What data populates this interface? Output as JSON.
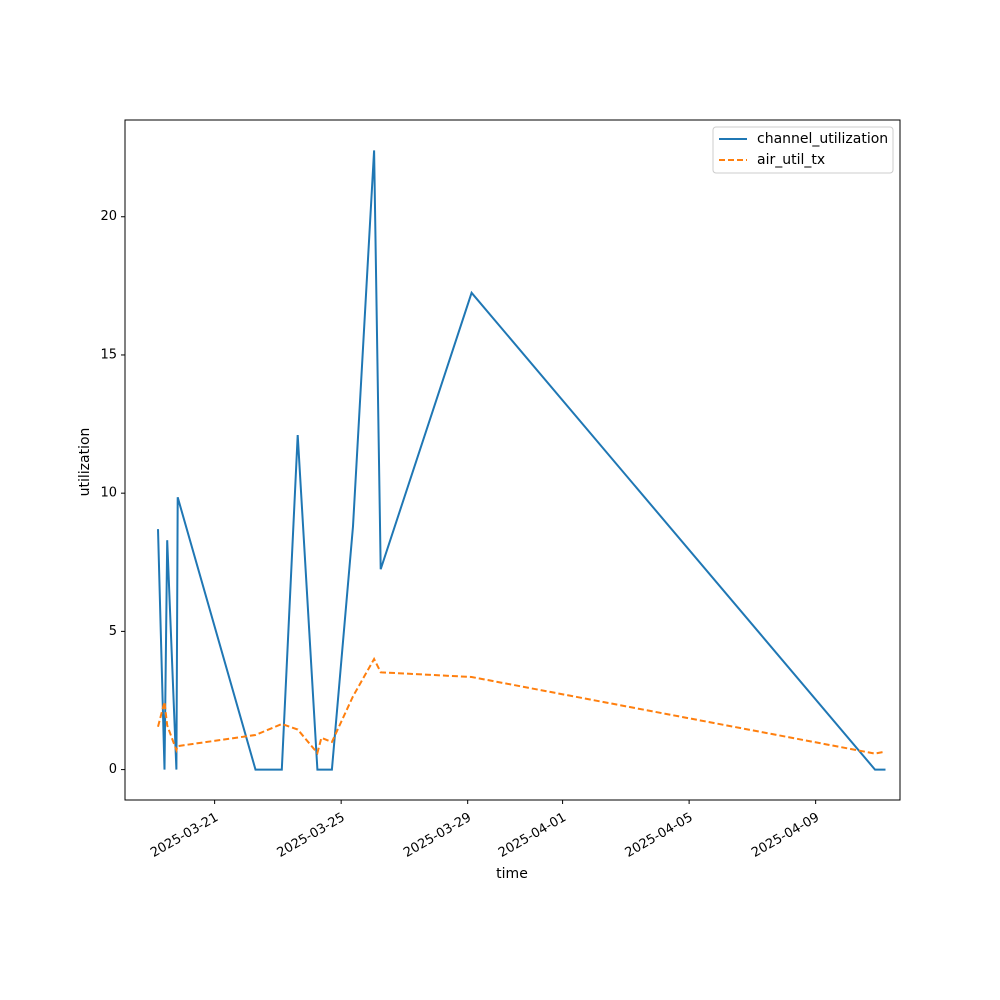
{
  "chart_data": {
    "type": "line",
    "xlabel": "time",
    "ylabel": "utilization",
    "x_scale": "date",
    "xlim": [
      "2025-03-18T04:00",
      "2025-04-11T16:00"
    ],
    "ylim": [
      -1.1,
      23.5
    ],
    "x_ticks": [
      "2025-03-21",
      "2025-03-25",
      "2025-03-29",
      "2025-04-01",
      "2025-04-05",
      "2025-04-09"
    ],
    "y_ticks": [
      0,
      5,
      10,
      15,
      20
    ],
    "grid": false,
    "legend_position": "top-right",
    "series": [
      {
        "name": "channel_utilization",
        "color": "#1f77b4",
        "dash": "solid",
        "points": [
          [
            "2025-03-19T05:00",
            8.7
          ],
          [
            "2025-03-19T10:00",
            0.0
          ],
          [
            "2025-03-19T12:00",
            8.3
          ],
          [
            "2025-03-19T19:00",
            0.0
          ],
          [
            "2025-03-19T20:00",
            9.85
          ],
          [
            "2025-03-22T07:00",
            0.0
          ],
          [
            "2025-03-23T03:00",
            0.0
          ],
          [
            "2025-03-23T15:00",
            12.1
          ],
          [
            "2025-03-24T06:00",
            0.0
          ],
          [
            "2025-03-24T17:00",
            0.0
          ],
          [
            "2025-03-25T09:00",
            8.8
          ],
          [
            "2025-03-26T01:00",
            22.4
          ],
          [
            "2025-03-26T06:00",
            7.25
          ],
          [
            "2025-03-29T03:00",
            17.25
          ],
          [
            "2025-04-10T21:00",
            0.0
          ],
          [
            "2025-04-11T05:00",
            0.0
          ]
        ]
      },
      {
        "name": "air_util_tx",
        "color": "#ff7f0e",
        "dash": "dashed",
        "points": [
          [
            "2025-03-19T05:00",
            1.55
          ],
          [
            "2025-03-19T10:00",
            2.45
          ],
          [
            "2025-03-19T12:00",
            1.6
          ],
          [
            "2025-03-19T19:00",
            0.7
          ],
          [
            "2025-03-19T20:00",
            0.85
          ],
          [
            "2025-03-22T07:00",
            1.25
          ],
          [
            "2025-03-23T03:00",
            1.65
          ],
          [
            "2025-03-23T15:00",
            1.45
          ],
          [
            "2025-03-24T06:00",
            0.6
          ],
          [
            "2025-03-24T09:00",
            1.15
          ],
          [
            "2025-03-24T17:00",
            1.0
          ],
          [
            "2025-03-25T09:00",
            2.65
          ],
          [
            "2025-03-26T01:00",
            4.0
          ],
          [
            "2025-03-26T06:00",
            3.52
          ],
          [
            "2025-03-29T03:00",
            3.35
          ],
          [
            "2025-04-10T21:00",
            0.58
          ],
          [
            "2025-04-11T05:00",
            0.65
          ]
        ]
      }
    ]
  }
}
